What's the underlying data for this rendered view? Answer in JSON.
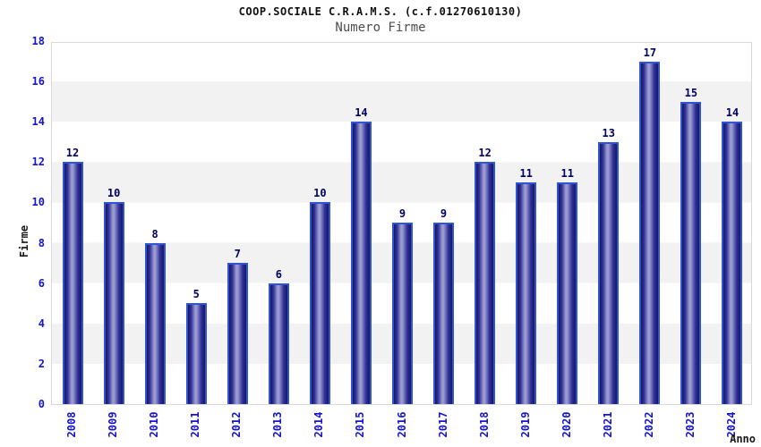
{
  "title": "COOP.SOCIALE C.R.A.M.S. (c.f.01270610130)",
  "subtitle": "Numero Firme",
  "chart_data": {
    "type": "bar",
    "title": "COOP.SOCIALE C.R.A.M.S. (c.f.01270610130)",
    "subtitle": "Numero Firme",
    "categories": [
      "2008",
      "2009",
      "2010",
      "2011",
      "2012",
      "2013",
      "2014",
      "2015",
      "2016",
      "2017",
      "2018",
      "2019",
      "2020",
      "2021",
      "2022",
      "2023",
      "2024"
    ],
    "values": [
      12,
      10,
      8,
      5,
      7,
      6,
      10,
      14,
      9,
      9,
      12,
      11,
      11,
      13,
      17,
      15,
      14
    ],
    "xlabel": "Anno",
    "ylabel": "Firme",
    "ylim": [
      0,
      18
    ],
    "ytick_step": 2,
    "grid": "horizontal-bands-alternating",
    "legend": "none",
    "colors": {
      "bar_border": "#2f55d4",
      "bar_gradient_dark": "#17175f",
      "bar_gradient_mid": "#30309a",
      "bar_gradient_light": "#9b9bd0",
      "tick_label": "#1414cc",
      "value_label": "#000060",
      "band": "#f2f2f2",
      "plot_border": "#d9d9d9",
      "title": "#111111",
      "subtitle": "#4d4d4d",
      "axis_title": "#1a1a1a",
      "background": "#ffffff"
    }
  }
}
